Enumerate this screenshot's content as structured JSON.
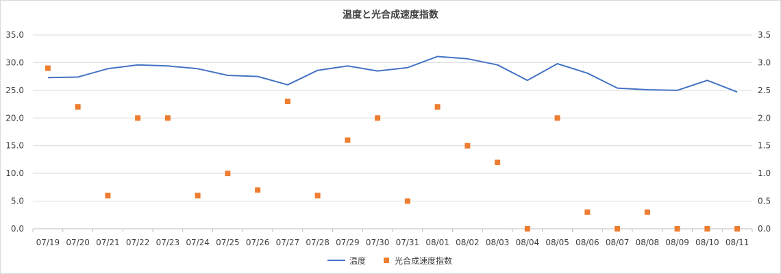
{
  "chart_data": {
    "type": "line",
    "title": "温度と光合成速度指数",
    "categories": [
      "07/19",
      "07/20",
      "07/21",
      "07/22",
      "07/23",
      "07/24",
      "07/25",
      "07/26",
      "07/27",
      "07/28",
      "07/29",
      "07/30",
      "07/31",
      "08/01",
      "08/02",
      "08/03",
      "08/04",
      "08/05",
      "08/06",
      "08/07",
      "08/08",
      "08/09",
      "08/10",
      "08/11"
    ],
    "y_left": {
      "ylim": [
        0,
        35
      ],
      "ticks": [
        "0.0",
        "5.0",
        "10.0",
        "15.0",
        "20.0",
        "25.0",
        "30.0",
        "35.0"
      ]
    },
    "y_right": {
      "ylim": [
        0,
        3.5
      ],
      "ticks": [
        "0.0",
        "0.5",
        "1.0",
        "1.5",
        "2.0",
        "2.5",
        "3.0",
        "3.5"
      ]
    },
    "grid": true,
    "legend_position": "bottom",
    "series": [
      {
        "name": "温度",
        "type": "line",
        "axis": "left",
        "color": "#4472c4",
        "values": [
          27.3,
          27.4,
          28.9,
          29.6,
          29.4,
          28.9,
          27.7,
          27.5,
          26.0,
          28.6,
          29.4,
          28.5,
          29.1,
          31.1,
          30.7,
          29.6,
          26.8,
          29.8,
          28.1,
          25.4,
          25.1,
          25.0,
          26.8,
          24.7
        ]
      },
      {
        "name": "光合成速度指数",
        "type": "scatter",
        "axis": "right",
        "color": "#ed7d31",
        "values": [
          2.9,
          2.2,
          0.6,
          2.0,
          2.0,
          0.6,
          1.0,
          0.7,
          2.3,
          0.6,
          1.6,
          2.0,
          0.5,
          2.2,
          1.5,
          1.2,
          0.0,
          2.0,
          0.3,
          0.0,
          0.3,
          0.0,
          0.0,
          0.0
        ]
      }
    ]
  }
}
